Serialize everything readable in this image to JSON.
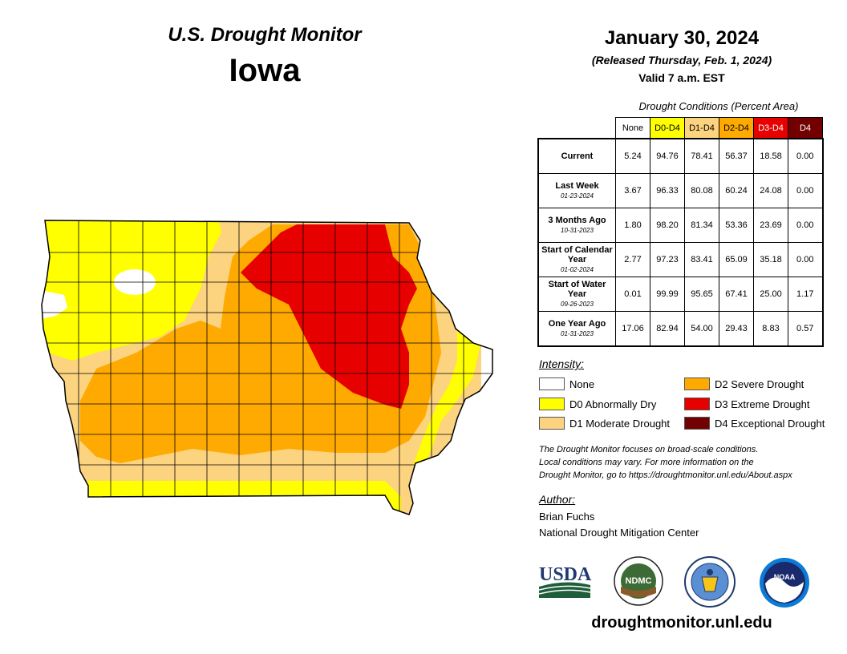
{
  "header": {
    "product": "U.S. Drought Monitor",
    "state": "Iowa",
    "date": "January 30, 2024",
    "released": "(Released Thursday, Feb. 1, 2024)",
    "valid": "Valid 7 a.m. EST"
  },
  "table": {
    "caption": "Drought Conditions (Percent Area)",
    "columns": [
      {
        "label": "None",
        "color": "#ffffff",
        "text_color": "#000000"
      },
      {
        "label": "D0-D4",
        "color": "#ffff00",
        "text_color": "#000000"
      },
      {
        "label": "D1-D4",
        "color": "#fcd37f",
        "text_color": "#000000"
      },
      {
        "label": "D2-D4",
        "color": "#ffaa00",
        "text_color": "#000000"
      },
      {
        "label": "D3-D4",
        "color": "#e60000",
        "text_color": "#ffffff"
      },
      {
        "label": "D4",
        "color": "#730000",
        "text_color": "#ffffff"
      }
    ],
    "rows": [
      {
        "label": "Current",
        "date": "",
        "values": [
          "5.24",
          "94.76",
          "78.41",
          "56.37",
          "18.58",
          "0.00"
        ]
      },
      {
        "label": "Last Week",
        "date": "01-23-2024",
        "values": [
          "3.67",
          "96.33",
          "80.08",
          "60.24",
          "24.08",
          "0.00"
        ]
      },
      {
        "label": "3 Months Ago",
        "date": "10-31-2023",
        "values": [
          "1.80",
          "98.20",
          "81.34",
          "53.36",
          "23.69",
          "0.00"
        ]
      },
      {
        "label": "Start of Calendar Year",
        "date": "01-02-2024",
        "values": [
          "2.77",
          "97.23",
          "83.41",
          "65.09",
          "35.18",
          "0.00"
        ]
      },
      {
        "label": "Start of Water Year",
        "date": "09-26-2023",
        "values": [
          "0.01",
          "99.99",
          "95.65",
          "67.41",
          "25.00",
          "1.17"
        ]
      },
      {
        "label": "One Year Ago",
        "date": "01-31-2023",
        "values": [
          "17.06",
          "82.94",
          "54.00",
          "29.43",
          "8.83",
          "0.57"
        ]
      }
    ]
  },
  "legend": {
    "title": "Intensity:",
    "items": [
      {
        "label": "None",
        "color": "#ffffff"
      },
      {
        "label": "D0 Abnormally Dry",
        "color": "#ffff00"
      },
      {
        "label": "D1 Moderate Drought",
        "color": "#fcd37f"
      },
      {
        "label": "D2 Severe Drought",
        "color": "#ffaa00"
      },
      {
        "label": "D3 Extreme Drought",
        "color": "#e60000"
      },
      {
        "label": "D4 Exceptional Drought",
        "color": "#730000"
      }
    ]
  },
  "note": {
    "line1": "The Drought Monitor focuses on broad-scale conditions.",
    "line2": "Local conditions may vary. For more information on the",
    "line3": "Drought Monitor, go to https://droughtmonitor.unl.edu/About.aspx"
  },
  "author": {
    "heading": "Author:",
    "name": "Brian Fuchs",
    "org": "National Drought Mitigation Center"
  },
  "logos": {
    "usda": "USDA",
    "ndmc": "NDMC",
    "noaa": "NOAA"
  },
  "website": "droughtmonitor.unl.edu"
}
